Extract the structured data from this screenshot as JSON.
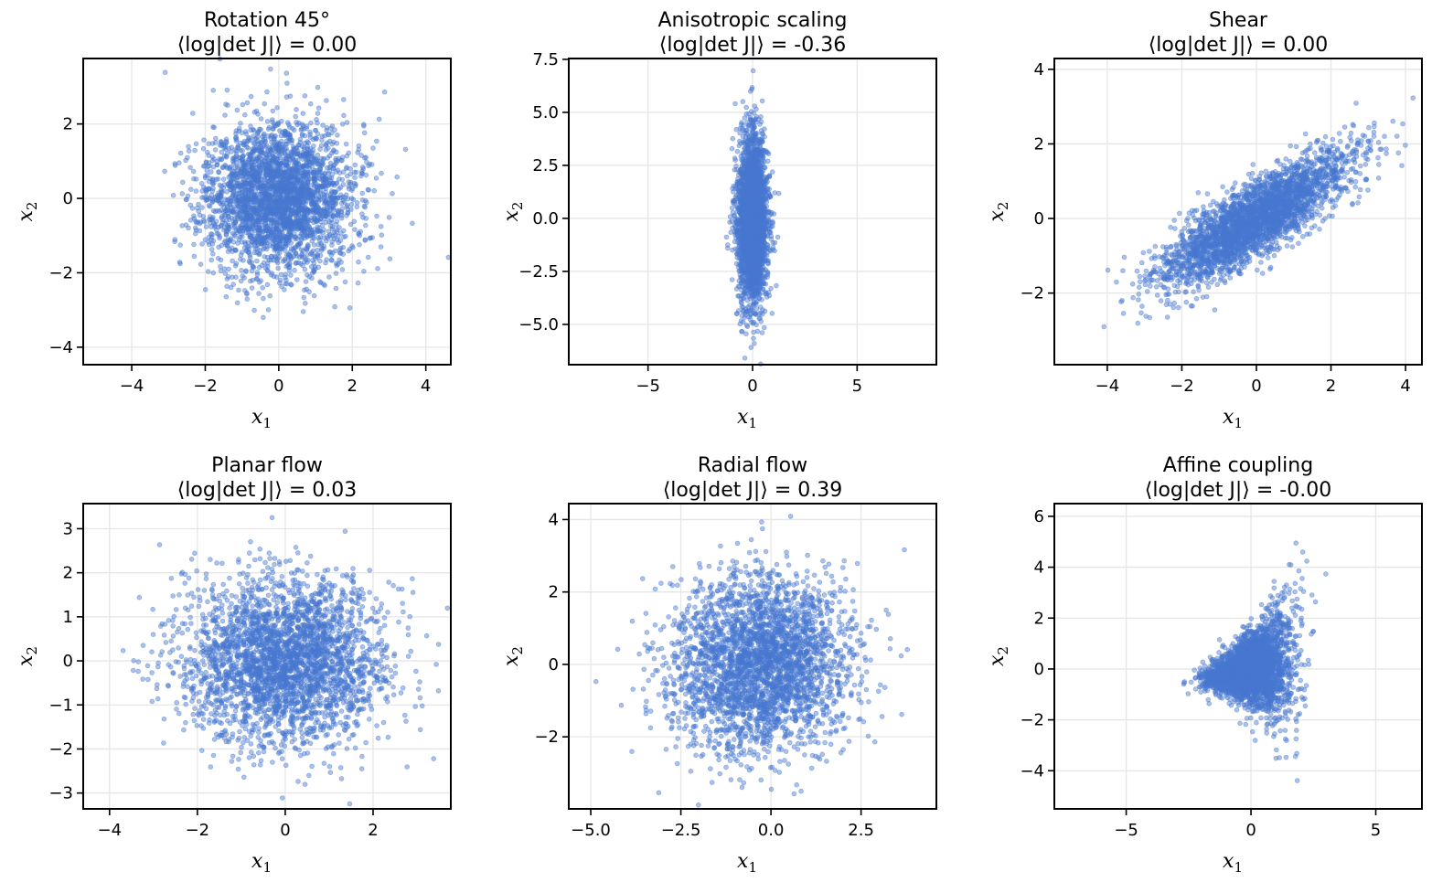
{
  "chart_data": [
    {
      "type": "scatter",
      "title": "Rotation 45°",
      "subtitle": "⟨log|det J|⟩ = 0.00",
      "xlabel": "x",
      "xlabel_sub": "1",
      "ylabel": "x",
      "ylabel_sub": "2",
      "xlim": [
        -5.32,
        4.68
      ],
      "ylim": [
        -4.47,
        3.76
      ],
      "xticks": [
        -4,
        -2,
        0,
        2,
        4
      ],
      "xtick_labels": [
        "−4",
        "−2",
        "0",
        "2",
        "4"
      ],
      "yticks": [
        -4,
        -2,
        0,
        2
      ],
      "ytick_labels": [
        "−4",
        "−2",
        "0",
        "2"
      ],
      "n_points": 3000,
      "distribution": {
        "kind": "gaussian",
        "mean": [
          0,
          0
        ],
        "std": [
          1,
          1
        ]
      },
      "seed": 11
    },
    {
      "type": "scatter",
      "title": "Anisotropic scaling",
      "subtitle": "⟨log|det J|⟩ = -0.36",
      "xlabel": "x",
      "xlabel_sub": "1",
      "ylabel": "x",
      "ylabel_sub": "2",
      "xlim": [
        -8.79,
        8.79
      ],
      "ylim": [
        -6.9,
        7.54
      ],
      "xticks": [
        -5,
        0,
        5
      ],
      "xtick_labels": [
        "−5",
        "0",
        "5"
      ],
      "yticks": [
        -5,
        -2.5,
        0,
        2.5,
        5,
        7.5
      ],
      "ytick_labels": [
        "−5.0",
        "−2.5",
        "0.0",
        "2.5",
        "5.0",
        "7.5"
      ],
      "n_points": 3000,
      "distribution": {
        "kind": "gaussian",
        "mean": [
          0,
          0
        ],
        "std": [
          0.35,
          1.9
        ]
      },
      "seed": 22
    },
    {
      "type": "scatter",
      "title": "Shear",
      "subtitle": "⟨log|det J|⟩ = 0.00",
      "xlabel": "x",
      "xlabel_sub": "1",
      "ylabel": "x",
      "ylabel_sub": "2",
      "xlim": [
        -5.42,
        4.44
      ],
      "ylim": [
        -3.92,
        4.29
      ],
      "xticks": [
        -4,
        -2,
        0,
        2,
        4
      ],
      "xtick_labels": [
        "−4",
        "−2",
        "0",
        "2",
        "4"
      ],
      "yticks": [
        -2,
        0,
        2,
        4
      ],
      "ytick_labels": [
        "−2",
        "0",
        "2",
        "4"
      ],
      "n_points": 3000,
      "distribution": {
        "kind": "shear",
        "shear": 0.7
      },
      "seed": 33
    },
    {
      "type": "scatter",
      "title": "Planar flow",
      "subtitle": "⟨log|det J|⟩ = 0.03",
      "xlabel": "x",
      "xlabel_sub": "1",
      "ylabel": "x",
      "ylabel_sub": "2",
      "xlim": [
        -4.6,
        3.77
      ],
      "ylim": [
        -3.36,
        3.57
      ],
      "xticks": [
        -4,
        -2,
        0,
        2
      ],
      "xtick_labels": [
        "−4",
        "−2",
        "0",
        "2"
      ],
      "yticks": [
        -3,
        -2,
        -1,
        0,
        1,
        2,
        3
      ],
      "ytick_labels": [
        "−3",
        "−2",
        "−1",
        "0",
        "1",
        "2",
        "3"
      ],
      "n_points": 3000,
      "distribution": {
        "kind": "gaussian",
        "mean": [
          0,
          0
        ],
        "std": [
          1.15,
          0.95
        ]
      },
      "seed": 44
    },
    {
      "type": "scatter",
      "title": "Radial flow",
      "subtitle": "⟨log|det J|⟩ = 0.39",
      "xlabel": "x",
      "xlabel_sub": "1",
      "ylabel": "x",
      "ylabel_sub": "2",
      "xlim": [
        -5.61,
        4.59
      ],
      "ylim": [
        -3.99,
        4.44
      ],
      "xticks": [
        -5,
        -2.5,
        0,
        2.5
      ],
      "xtick_labels": [
        "−5.0",
        "−2.5",
        "0.0",
        "2.5"
      ],
      "yticks": [
        -2,
        0,
        2,
        4
      ],
      "ytick_labels": [
        "−2",
        "0",
        "2",
        "4"
      ],
      "n_points": 3000,
      "distribution": {
        "kind": "gaussian",
        "mean": [
          -0.3,
          0
        ],
        "std": [
          1.2,
          1.2
        ]
      },
      "seed": 55
    },
    {
      "type": "scatter",
      "title": "Affine coupling",
      "subtitle": "⟨log|det J|⟩ = -0.00",
      "xlabel": "x",
      "xlabel_sub": "1",
      "ylabel": "x",
      "ylabel_sub": "2",
      "xlim": [
        -7.88,
        6.85
      ],
      "ylim": [
        -5.5,
        6.5
      ],
      "xticks": [
        -5,
        0,
        5
      ],
      "xtick_labels": [
        "−5",
        "0",
        "5"
      ],
      "yticks": [
        -4,
        -2,
        0,
        2,
        4,
        6
      ],
      "ytick_labels": [
        "−4",
        "−2",
        "0",
        "2",
        "4",
        "6"
      ],
      "n_points": 3000,
      "distribution": {
        "kind": "affine_coupling",
        "scale": 0.5
      },
      "seed": 66
    }
  ],
  "colors": {
    "points": "#4878d0",
    "grid": "#e6e6e6"
  }
}
